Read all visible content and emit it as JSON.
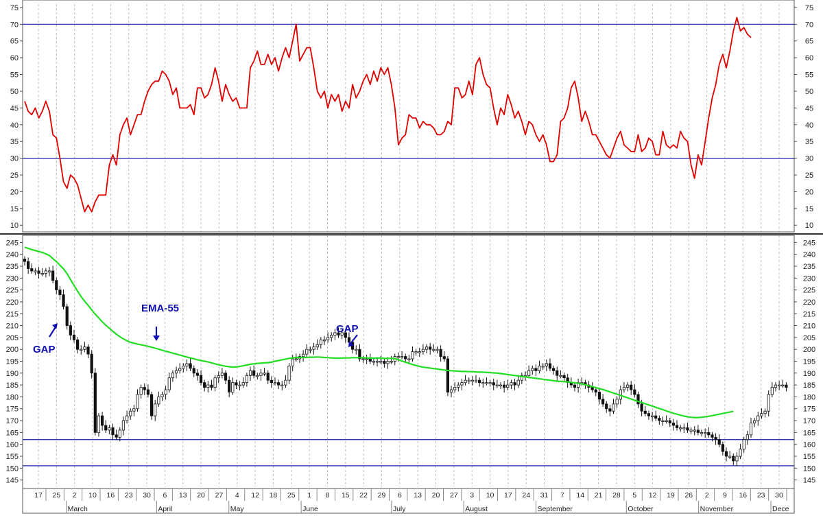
{
  "chart_data": [
    {
      "type": "line",
      "title": "",
      "xlabel": "",
      "ylabel": "",
      "ylim": [
        8,
        76
      ],
      "yticks": [
        10,
        15,
        20,
        25,
        30,
        35,
        40,
        45,
        50,
        55,
        60,
        65,
        70,
        75
      ],
      "reference_lines": [
        30,
        70
      ],
      "line_color": "#e00000",
      "ref_color": "#1a1aa8",
      "grid": "vertical-dashed",
      "series": [
        {
          "values": [
            47,
            44,
            43,
            45,
            42,
            44,
            47,
            44,
            37,
            36,
            30,
            23,
            21,
            25,
            24,
            22,
            18,
            14,
            16,
            14,
            17,
            19,
            19,
            19,
            28,
            31,
            28,
            37,
            40,
            42,
            37,
            40,
            43,
            43,
            47,
            50,
            52,
            53,
            53,
            56,
            55,
            53,
            49,
            51,
            45,
            45,
            45,
            46,
            43,
            51,
            51,
            48,
            49,
            52,
            57,
            53,
            47,
            52,
            49,
            47,
            48,
            45,
            45,
            45,
            57,
            59,
            62,
            58,
            58,
            61,
            58,
            60,
            56,
            60,
            63,
            60,
            65,
            70,
            59,
            61,
            63,
            63,
            57,
            50,
            48,
            50,
            45,
            49,
            47,
            49,
            44,
            47,
            45,
            52,
            48,
            50,
            53,
            55,
            52,
            56,
            53,
            57,
            55,
            57,
            52,
            45,
            34,
            36,
            37,
            43,
            42,
            42,
            39,
            41,
            40,
            40,
            39,
            37,
            37,
            38,
            41,
            40,
            51,
            51,
            48,
            49,
            53,
            49,
            58,
            60,
            55,
            52,
            51,
            45,
            40,
            45,
            43,
            49,
            46,
            42,
            44,
            41,
            37,
            41,
            40,
            37,
            35,
            37,
            34,
            29,
            29,
            31,
            41,
            42,
            45,
            51,
            53,
            48,
            41,
            44,
            41,
            37,
            37,
            35,
            33,
            31,
            30,
            33,
            36,
            38,
            34,
            33,
            32,
            32,
            37,
            32,
            33,
            36,
            35,
            31,
            31,
            38,
            34,
            33,
            34,
            33,
            38,
            36,
            35,
            28,
            24,
            31,
            28,
            35,
            42,
            48,
            52,
            58,
            61,
            57,
            62,
            68,
            72,
            68,
            69,
            67,
            66
          ]
        }
      ]
    },
    {
      "type": "candlestick",
      "title": "",
      "xlabel": "",
      "ylabel": "",
      "ylim": [
        142,
        248
      ],
      "yticks": [
        145,
        150,
        155,
        160,
        165,
        170,
        175,
        180,
        185,
        190,
        195,
        200,
        205,
        210,
        215,
        220,
        225,
        230,
        235,
        240,
        245
      ],
      "reference_lines": [
        151,
        162
      ],
      "ref_color": "#1a1aa8",
      "up_color": "#ffffff",
      "down_color": "#111111",
      "series": [
        {
          "name": "price",
          "closes": [
            237,
            234,
            233,
            233,
            232,
            232,
            233,
            233,
            229,
            225,
            223,
            218,
            210,
            206,
            204,
            200,
            200,
            201,
            198,
            190,
            165,
            172,
            168,
            166,
            167,
            164,
            163,
            166,
            170,
            172,
            174,
            175,
            181,
            184,
            183,
            181,
            172,
            177,
            180,
            181,
            183,
            188,
            190,
            191,
            192,
            193,
            194,
            192,
            190,
            189,
            186,
            184,
            185,
            184,
            188,
            189,
            190,
            187,
            182,
            186,
            185,
            185,
            186,
            189,
            191,
            189,
            189,
            190,
            190,
            187,
            186,
            186,
            185,
            185,
            187,
            193,
            196,
            196,
            197,
            198,
            200,
            200,
            201,
            202,
            204,
            204,
            205,
            206,
            207,
            206,
            207,
            205,
            203,
            200,
            200,
            196,
            196,
            196,
            195,
            195,
            195,
            195,
            194,
            195,
            195,
            197,
            197,
            197,
            196,
            196,
            199,
            199,
            199,
            200,
            201,
            200,
            200,
            200,
            197,
            196,
            182,
            183,
            184,
            185,
            186,
            187,
            187,
            187,
            187,
            186,
            186,
            186,
            186,
            185,
            185,
            185,
            184,
            185,
            186,
            185,
            187,
            189,
            189,
            191,
            192,
            191,
            193,
            193,
            194,
            192,
            191,
            189,
            189,
            188,
            186,
            185,
            184,
            186,
            186,
            185,
            184,
            183,
            182,
            179,
            177,
            175,
            174,
            177,
            179,
            183,
            184,
            185,
            183,
            181,
            177,
            174,
            173,
            172,
            172,
            171,
            170,
            170,
            170,
            169,
            168,
            167,
            167,
            167,
            166,
            166,
            166,
            165,
            165,
            165,
            164,
            163,
            162,
            160,
            157,
            155,
            155,
            153,
            155,
            158,
            162,
            164,
            169,
            170,
            172,
            173,
            174,
            181,
            184,
            185,
            185,
            185,
            184
          ]
        },
        {
          "name": "EMA-55",
          "values": [
            243,
            242.5,
            242,
            241.6,
            241.2,
            240.8,
            240.2,
            239.5,
            238.2,
            236.9,
            235.4,
            233.9,
            231.9,
            229.4,
            226.9,
            224.5,
            222.2,
            220.3,
            218.5,
            216.6,
            214.8,
            213.2,
            211.6,
            210.2,
            208.9,
            207.6,
            206.4,
            205.3,
            204.4,
            203.6,
            203,
            202.6,
            202.2,
            201.9,
            201.6,
            201.3,
            200.9,
            200.5,
            200.1,
            199.6,
            199.2,
            198.8,
            198.4,
            198,
            197.6,
            197.2,
            196.8,
            196.4,
            196,
            195.6,
            195.3,
            195,
            194.7,
            194.3,
            193.9,
            193.5,
            193.2,
            192.9,
            192.7,
            192.5,
            192.6,
            192.8,
            193.1,
            193.4,
            193.7,
            193.9,
            194.1,
            194.2,
            194.3,
            194.4,
            194.6,
            195,
            195.3,
            195.6,
            195.9,
            196.2,
            196.4,
            196.6,
            196.6,
            196.6,
            196.6,
            196.7,
            196.7,
            196.8,
            196.7,
            196.6,
            196.5,
            196.4,
            196.3,
            196.3,
            196.3,
            196.4,
            196.4,
            196.5,
            196.5,
            196.5,
            196.5,
            196.4,
            196.3,
            196.3,
            196.3,
            196.3,
            196.2,
            196.2,
            196.2,
            196.1,
            195.7,
            195.1,
            194.6,
            194.1,
            193.6,
            193.2,
            192.8,
            192.5,
            192.3,
            192.1,
            191.9,
            191.7,
            191.5,
            191.3,
            191.1,
            191,
            190.9,
            190.8,
            190.7,
            190.7,
            190.6,
            190.6,
            190.5,
            190.4,
            190.4,
            190.3,
            190.2,
            190.1,
            190,
            189.8,
            189.6,
            189.4,
            189.2,
            189,
            188.8,
            188.6,
            188.4,
            188.2,
            188,
            187.8,
            187.6,
            187.4,
            187.2,
            187,
            186.8,
            186.6,
            186.5,
            186.4,
            186.3,
            186.1,
            185.9,
            185.7,
            185.4,
            185.1,
            184.7,
            184.3,
            183.9,
            183.5,
            183.1,
            182.6,
            182.1,
            181.6,
            181.1,
            180.6,
            180.1,
            179.6,
            179.1,
            178.6,
            178.1,
            177.6,
            177.1,
            176.6,
            176.1,
            175.6,
            175.1,
            174.6,
            174.1,
            173.6,
            173.1,
            172.7,
            172.3,
            171.9,
            171.6,
            171.4,
            171.3,
            171.3,
            171.4,
            171.6,
            171.8,
            172.1,
            172.4,
            172.7,
            173,
            173.3,
            173.6,
            173.9
          ]
        }
      ],
      "annotations": [
        {
          "text": "GAP",
          "near_index": 12
        },
        {
          "text": "EMA-55",
          "near_index": 30
        },
        {
          "text": "GAP",
          "near_index": 77
        }
      ]
    }
  ],
  "x_axis": {
    "day_labels": [
      "17",
      "25",
      "2",
      "10",
      "16",
      "23",
      "30",
      "6",
      "13",
      "20",
      "27",
      "4",
      "12",
      "18",
      "25",
      "1",
      "8",
      "15",
      "22",
      "29",
      "6",
      "13",
      "20",
      "27",
      "3",
      "10",
      "17",
      "24",
      "31",
      "7",
      "14",
      "21",
      "28",
      "5",
      "12",
      "19",
      "26",
      "2",
      "9",
      "16",
      "23",
      "30"
    ],
    "month_labels": [
      "March",
      "April",
      "May",
      "June",
      "July",
      "August",
      "September",
      "October",
      "November",
      "Dece"
    ]
  }
}
